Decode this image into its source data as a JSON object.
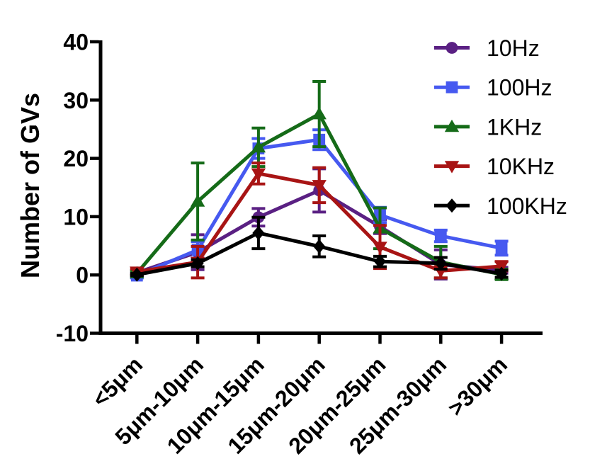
{
  "chart_data": {
    "type": "line",
    "title": "",
    "xlabel": "",
    "ylabel": "Number of GVs",
    "ylim": [
      -10,
      40
    ],
    "yticks": [
      40,
      30,
      20,
      10,
      0,
      -10
    ],
    "ytick_labels": [
      "40",
      "30",
      "20",
      "10",
      "0",
      "-10"
    ],
    "categories": [
      "<5μm",
      "5μm-10μm",
      "10μm-15μm",
      "15μm-20μm",
      "20μm-25μm",
      "25μm-30μm",
      ">30μm"
    ],
    "grid": false,
    "legend_position": "top-right",
    "axis_color": "#000000",
    "series": [
      {
        "name": "10Hz",
        "color": "#5A2083",
        "marker": "circle",
        "values": [
          0.4,
          3.9,
          9.9,
          14.5,
          8.3,
          1.8,
          0.8
        ],
        "errors": [
          0.4,
          3.0,
          1.5,
          3.7,
          1.2,
          2.5,
          0.5
        ]
      },
      {
        "name": "100Hz",
        "color": "#4659F0",
        "marker": "square",
        "values": [
          -0.1,
          4.3,
          21.7,
          23.2,
          10.3,
          6.7,
          4.6
        ],
        "errors": [
          0.4,
          1.4,
          1.7,
          1.7,
          1.3,
          1.0,
          1.2
        ]
      },
      {
        "name": "1KHz",
        "color": "#156B18",
        "marker": "triangle-up",
        "values": [
          0.3,
          12.6,
          21.9,
          27.6,
          8.0,
          2.2,
          0.1
        ],
        "errors": [
          0.4,
          6.6,
          3.3,
          5.6,
          3.5,
          2.7,
          0.9
        ]
      },
      {
        "name": "10KHz",
        "color": "#A81414",
        "marker": "triangle-down",
        "values": [
          0.55,
          2.2,
          17.4,
          15.4,
          4.8,
          0.7,
          1.5
        ],
        "errors": [
          0.5,
          2.7,
          1.8,
          3.0,
          3.7,
          1.2,
          0.8
        ]
      },
      {
        "name": "100KHz",
        "color": "#000000",
        "marker": "diamond",
        "values": [
          0.05,
          2.0,
          7.2,
          4.9,
          2.3,
          2.0,
          0.2
        ],
        "errors": [
          0.2,
          0.6,
          2.7,
          1.8,
          0.9,
          1.0,
          0.6
        ]
      }
    ]
  }
}
